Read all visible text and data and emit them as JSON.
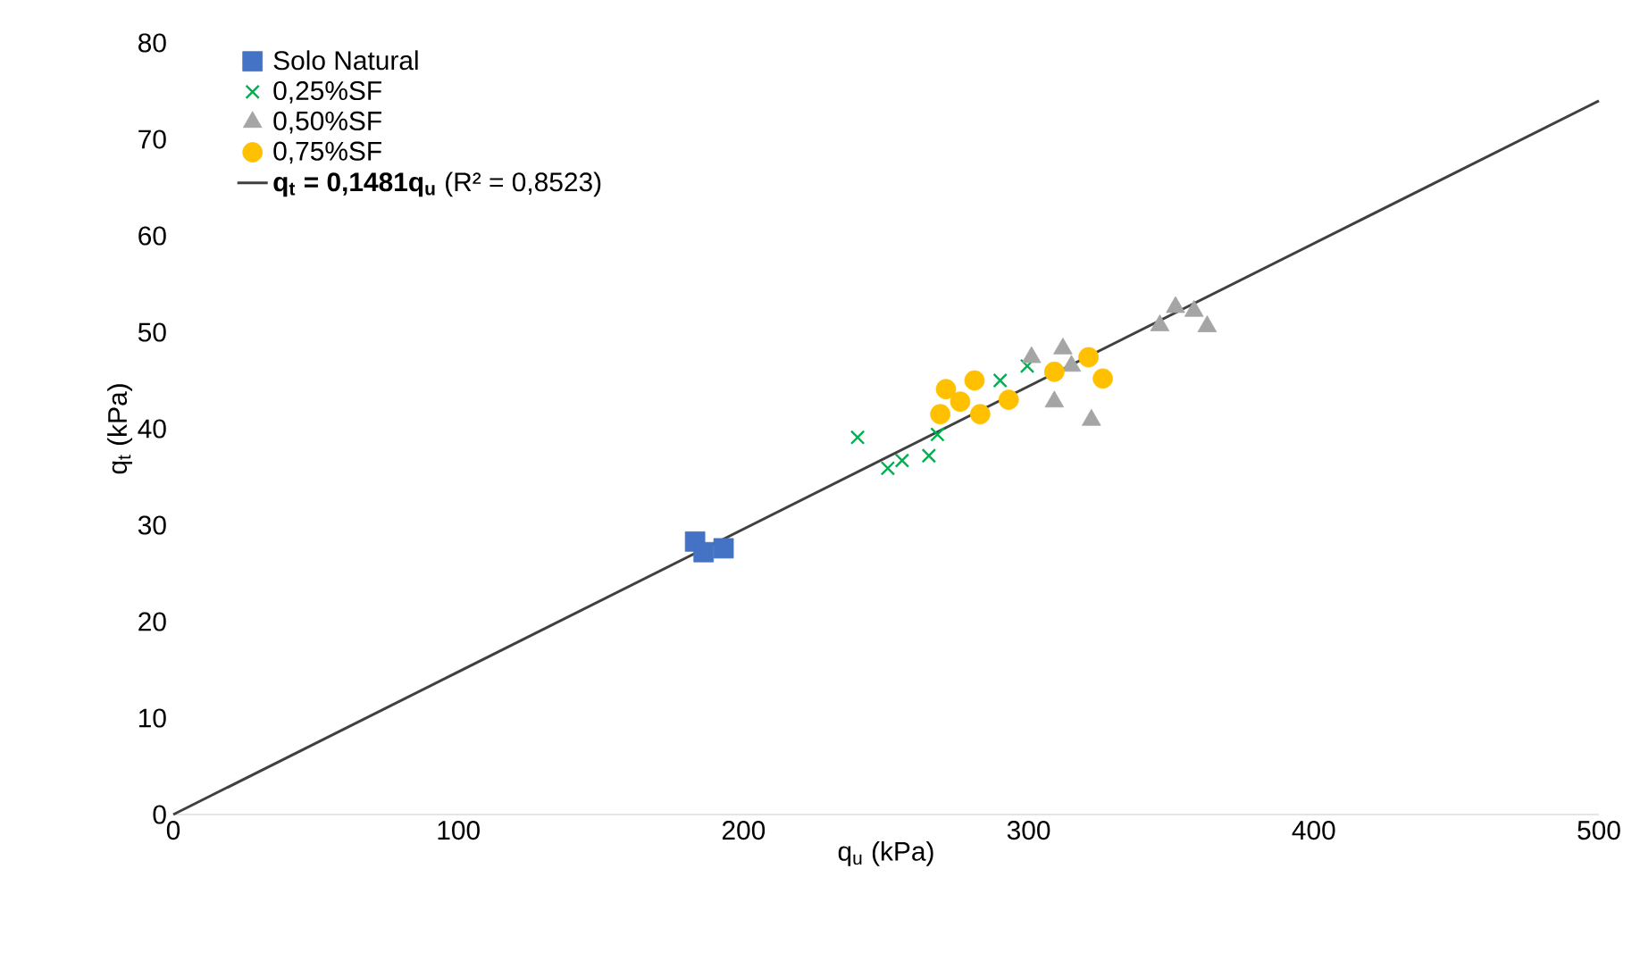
{
  "chart_data": {
    "type": "scatter",
    "xlabel": "q$_{u}$ (kPa)",
    "ylabel": "q$_{t}$  (kPa)",
    "xlim": [
      0,
      500
    ],
    "ylim": [
      0,
      80
    ],
    "xticks": [
      0,
      100,
      200,
      300,
      400,
      500
    ],
    "yticks": [
      0,
      10,
      20,
      30,
      40,
      50,
      60,
      70,
      80
    ],
    "legend": "top left",
    "grid": false,
    "series": [
      {
        "name": "Solo Natural",
        "color": "#4472c4",
        "marker": "square",
        "x": [
          183,
          193,
          186
        ],
        "values": [
          28.3,
          27.6,
          27.2
        ]
      },
      {
        "name": "0,25%SF",
        "color": "#00b050",
        "marker": "cross",
        "x": [
          240,
          250.6,
          255.6,
          265,
          268,
          290,
          299.5
        ],
        "values": [
          39.1,
          35.9,
          36.7,
          37.2,
          39.4,
          45,
          46.5
        ]
      },
      {
        "name": "0,50%SF",
        "color": "#a5a5a5",
        "marker": "triangle",
        "x": [
          301,
          312,
          309,
          322,
          315,
          346,
          351.5,
          358,
          362.6
        ],
        "values": [
          47.4,
          48.3,
          42.8,
          40.9,
          46.5,
          50.7,
          52.6,
          52.2,
          50.6
        ]
      },
      {
        "name": "0,75%SF",
        "color": "#ffc000",
        "marker": "circle",
        "x": [
          271,
          281,
          269,
          283,
          293,
          309,
          321,
          326,
          276
        ],
        "values": [
          44.1,
          45,
          41.5,
          41.5,
          43,
          45.9,
          47.4,
          45.2,
          42.8
        ]
      },
      {
        "name": "**q$_{t}$ = 0,1481q$_{u}$** (R² = 0,8523)",
        "type": "line",
        "color": "#404040",
        "marker": "none",
        "line_style": "solid",
        "x": [
          0,
          500
        ],
        "values": [
          0,
          74
        ]
      }
    ]
  }
}
